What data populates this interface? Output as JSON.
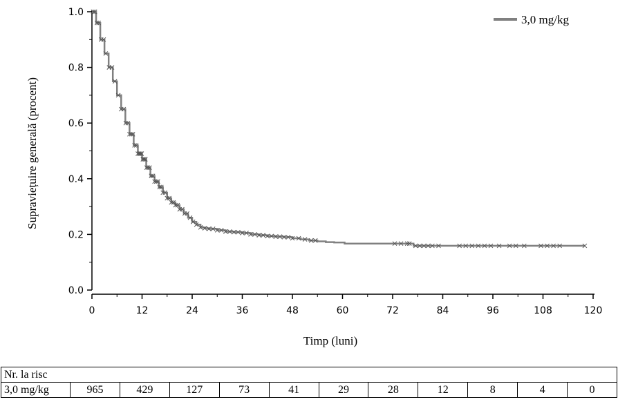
{
  "chart_data": {
    "type": "line",
    "xlabel": "Timp (luni)",
    "ylabel": "Supraviețuire generală (procent)",
    "xlim": [
      0,
      120
    ],
    "ylim": [
      0.0,
      1.0
    ],
    "xticks": [
      "0",
      "12",
      "24",
      "36",
      "48",
      "60",
      "72",
      "84",
      "96",
      "108",
      "120"
    ],
    "yticks": [
      "0.0",
      "0.2",
      "0.4",
      "0.6",
      "0.8",
      "1.0"
    ],
    "grid": false,
    "legend_position": "top-right",
    "series": [
      {
        "name": "3,0 mg/kg",
        "color": "#808080",
        "censor_marker": "x",
        "x": [
          0,
          1,
          2,
          3,
          4,
          5,
          6,
          7,
          8,
          9,
          10,
          11,
          12,
          13,
          14,
          15,
          16,
          17,
          18,
          19,
          20,
          21,
          22,
          23,
          24,
          25,
          26,
          27,
          28,
          30,
          32,
          34,
          36,
          38,
          40,
          42,
          44,
          46,
          48,
          50,
          52,
          54,
          56,
          58,
          60.5,
          62,
          66,
          70,
          74,
          76,
          77,
          80,
          84,
          90,
          96,
          102,
          108,
          114,
          118
        ],
        "y": [
          1.0,
          0.96,
          0.9,
          0.85,
          0.8,
          0.75,
          0.7,
          0.65,
          0.6,
          0.56,
          0.52,
          0.49,
          0.47,
          0.44,
          0.41,
          0.39,
          0.37,
          0.35,
          0.33,
          0.315,
          0.305,
          0.29,
          0.275,
          0.26,
          0.245,
          0.235,
          0.225,
          0.222,
          0.22,
          0.215,
          0.21,
          0.208,
          0.205,
          0.2,
          0.197,
          0.194,
          0.192,
          0.19,
          0.186,
          0.182,
          0.178,
          0.175,
          0.172,
          0.171,
          0.167,
          0.167,
          0.167,
          0.167,
          0.167,
          0.167,
          0.159,
          0.159,
          0.159,
          0.159,
          0.159,
          0.159,
          0.159,
          0.159,
          0.159
        ],
        "censored_x": [
          0.3,
          0.7,
          1.2,
          1.6,
          2.2,
          2.8,
          3.3,
          4.1,
          4.8,
          5.5,
          6.3,
          7.0,
          7.6,
          8.1,
          8.6,
          9.0,
          9.4,
          9.8,
          10.2,
          10.6,
          11.0,
          11.3,
          11.6,
          11.9,
          12.2,
          12.5,
          12.8,
          13.1,
          13.4,
          13.8,
          14.2,
          14.6,
          15.0,
          15.4,
          15.8,
          16.2,
          16.6,
          17.0,
          17.5,
          18.0,
          18.5,
          19.0,
          19.5,
          20.0,
          20.5,
          21.0,
          21.6,
          22.2,
          22.8,
          23.5,
          24.2,
          25.0,
          26.0,
          27.0,
          28.0,
          29.0,
          30.0,
          31.0,
          32.0,
          33.0,
          34.0,
          35.0,
          36.0,
          37.0,
          38.0,
          39.0,
          40.0,
          41.0,
          42.0,
          43.0,
          44.0,
          45.0,
          46.0,
          47.0,
          48.0,
          49.5,
          51.0,
          52.5,
          53.5,
          72.5,
          74.0,
          75.5,
          76.0,
          77.5,
          78.5,
          79.5,
          80.5,
          81.5,
          83.0,
          88.0,
          89.5,
          91.0,
          92.5,
          94.0,
          95.5,
          97.5,
          100.0,
          101.5,
          103.5,
          107.5,
          109.0,
          110.5,
          112.0,
          118.0
        ]
      }
    ]
  },
  "risk_table": {
    "header": "Nr. la risc",
    "row_label": "3,0 mg/kg",
    "values": [
      "965",
      "429",
      "127",
      "73",
      "41",
      "29",
      "28",
      "12",
      "8",
      "4",
      "0"
    ]
  }
}
